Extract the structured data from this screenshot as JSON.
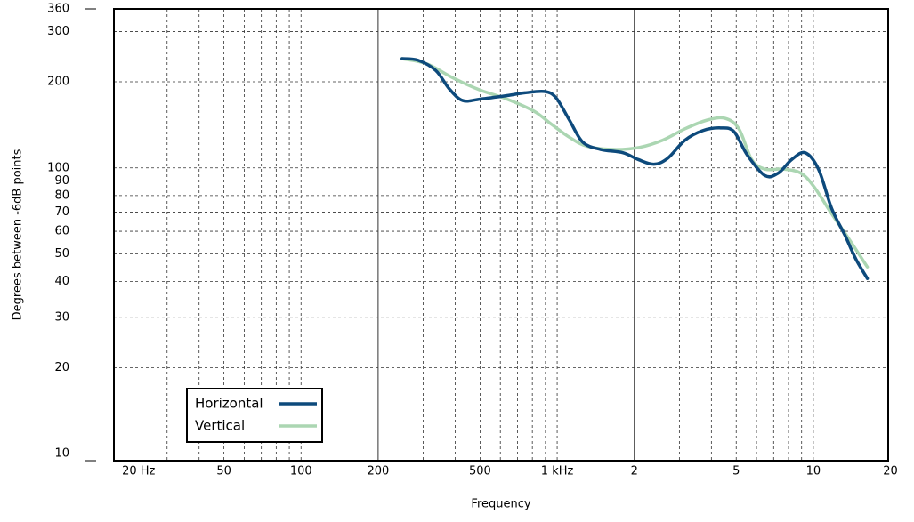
{
  "chart_data": {
    "type": "line",
    "xlabel": "Frequency",
    "ylabel": "Degrees between -6dB points",
    "xscale": "log",
    "yscale": "log",
    "xlim": [
      18.6,
      19600
    ],
    "ylim": [
      9.45,
      360
    ],
    "xticks": [
      {
        "value": 20,
        "label": "20 Hz"
      },
      50,
      100,
      200,
      500,
      {
        "value": 1000,
        "label": "1 kHz"
      },
      {
        "value": 2000,
        "label": "2"
      },
      {
        "value": 5000,
        "label": "5"
      },
      {
        "value": 10000,
        "label": "10"
      },
      {
        "value": 20000,
        "label": "20"
      }
    ],
    "xgrid": [
      30,
      40,
      50,
      60,
      70,
      80,
      90,
      100,
      300,
      400,
      500,
      600,
      700,
      800,
      900,
      1000,
      3000,
      4000,
      5000,
      6000,
      7000,
      8000,
      9000,
      10000
    ],
    "xgrid_solid": [
      200,
      2000
    ],
    "yticks": [
      10,
      20,
      30,
      40,
      50,
      60,
      70,
      80,
      90,
      100,
      200,
      300,
      360
    ],
    "ygrid": [
      20,
      30,
      40,
      50,
      60,
      70,
      80,
      90,
      100,
      200,
      300
    ],
    "legend": "lower left",
    "series": [
      {
        "name": "Horizontal",
        "color": "#0d4a7c",
        "x": [
          248,
          286,
          336,
          379,
          428,
          501,
          637,
          748,
          891,
          989,
          1116,
          1259,
          1477,
          1805,
          2070,
          2384,
          2700,
          3155,
          3700,
          4346,
          4898,
          5520,
          6472,
          7306,
          8236,
          9285,
          10470,
          11800,
          13300,
          14650,
          16250
        ],
        "values": [
          241,
          238,
          219,
          189,
          172,
          174,
          179,
          183,
          185,
          176,
          147,
          123,
          116,
          113,
          107,
          103,
          108,
          125,
          135,
          138,
          134,
          111,
          94,
          96,
          107,
          113,
          99,
          72,
          58,
          48,
          41
        ]
      },
      {
        "name": "Vertical",
        "color": "#abd6b2",
        "x": [
          248,
          310,
          394,
          501,
          637,
          811,
          951,
          1116,
          1309,
          1664,
          2100,
          2583,
          3155,
          3855,
          4520,
          5120,
          5745,
          6472,
          7600,
          8910,
          10050,
          11800,
          13850,
          16250
        ],
        "values": [
          241,
          231,
          206,
          187,
          174,
          158,
          142,
          128,
          119,
          116,
          118,
          125,
          137,
          147,
          149,
          137,
          107,
          99,
          99,
          96,
          86,
          69,
          56,
          45
        ]
      }
    ]
  }
}
